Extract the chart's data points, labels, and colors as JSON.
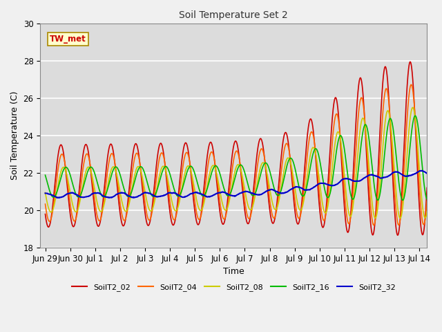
{
  "title": "Soil Temperature Set 2",
  "xlabel": "Time",
  "ylabel": "Soil Temperature (C)",
  "ylim": [
    18,
    30
  ],
  "annotation": "TW_met",
  "series_labels": [
    "SoilT2_02",
    "SoilT2_04",
    "SoilT2_08",
    "SoilT2_16",
    "SoilT2_32"
  ],
  "series_colors": [
    "#cc0000",
    "#ff6600",
    "#cccc00",
    "#00bb00",
    "#0000cc"
  ],
  "plot_bg": "#dcdcdc",
  "fig_bg": "#f0f0f0",
  "grid_color": "#ffffff",
  "xtick_labels": [
    "Jun 29",
    "Jun 30",
    "Jul 1",
    "Jul 2",
    "Jul 3",
    "Jul 4",
    "Jul 5",
    "Jul 6",
    "Jul 7",
    "Jul 8",
    "Jul 9",
    "Jul 10",
    "Jul 11",
    "Jul 12",
    "Jul 13",
    "Jul 14"
  ],
  "xtick_positions": [
    0,
    1,
    2,
    3,
    4,
    5,
    6,
    7,
    8,
    9,
    10,
    11,
    12,
    13,
    14,
    15
  ],
  "ytick_positions": [
    18,
    20,
    22,
    24,
    26,
    28,
    30
  ]
}
